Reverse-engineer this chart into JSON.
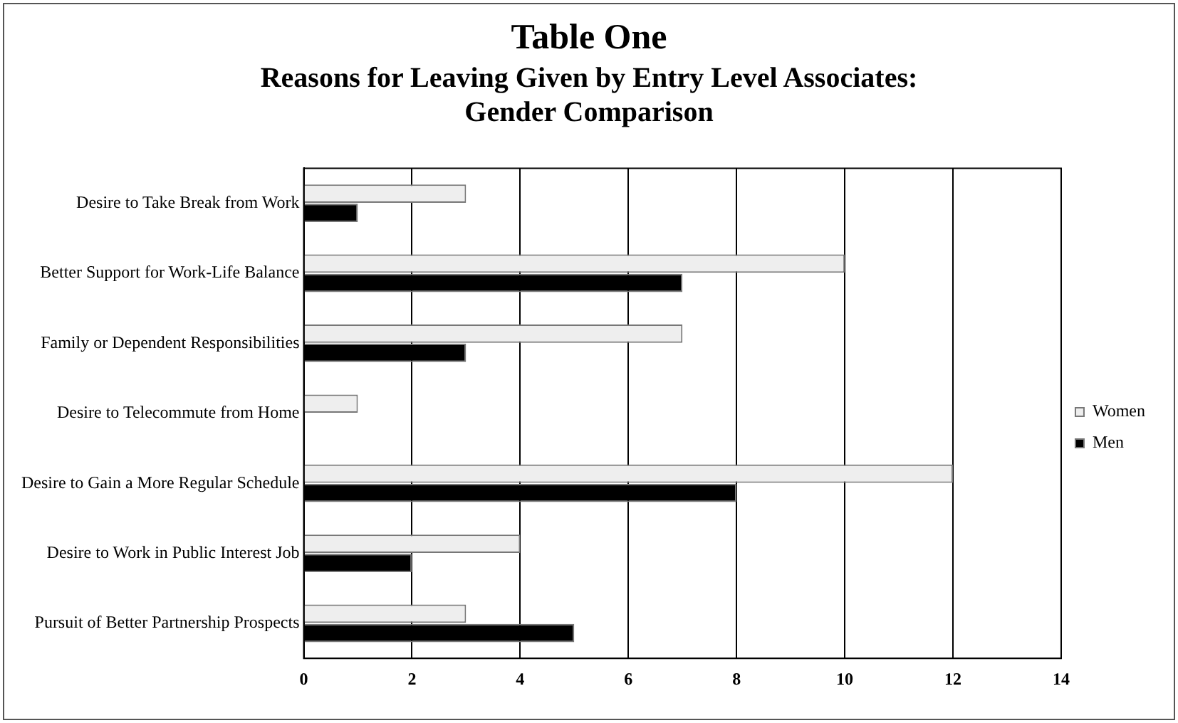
{
  "chart_data": {
    "type": "bar",
    "orientation": "horizontal",
    "title": "Table One",
    "subtitle": "Reasons for Leaving Given by Entry Level Associates:  Gender Comparison",
    "categories": [
      "Desire to Take Break from Work",
      "Better Support for Work-Life Balance",
      "Family or Dependent Responsibilities",
      "Desire to Telecommute from Home",
      "Desire to Gain a More Regular Schedule",
      "Desire to Work in Public Interest Job",
      "Pursuit of Better Partnership Prospects"
    ],
    "series": [
      {
        "name": "Women",
        "color": "#eeeeee",
        "values": [
          3,
          10,
          7,
          1,
          12,
          4,
          3
        ]
      },
      {
        "name": "Men",
        "color": "#000000",
        "values": [
          1,
          7,
          3,
          0,
          8,
          2,
          5
        ]
      }
    ],
    "xlim": [
      0,
      14
    ],
    "xticks": [
      0,
      2,
      4,
      6,
      8,
      10,
      12,
      14
    ],
    "grid": "x",
    "legend": "right"
  }
}
